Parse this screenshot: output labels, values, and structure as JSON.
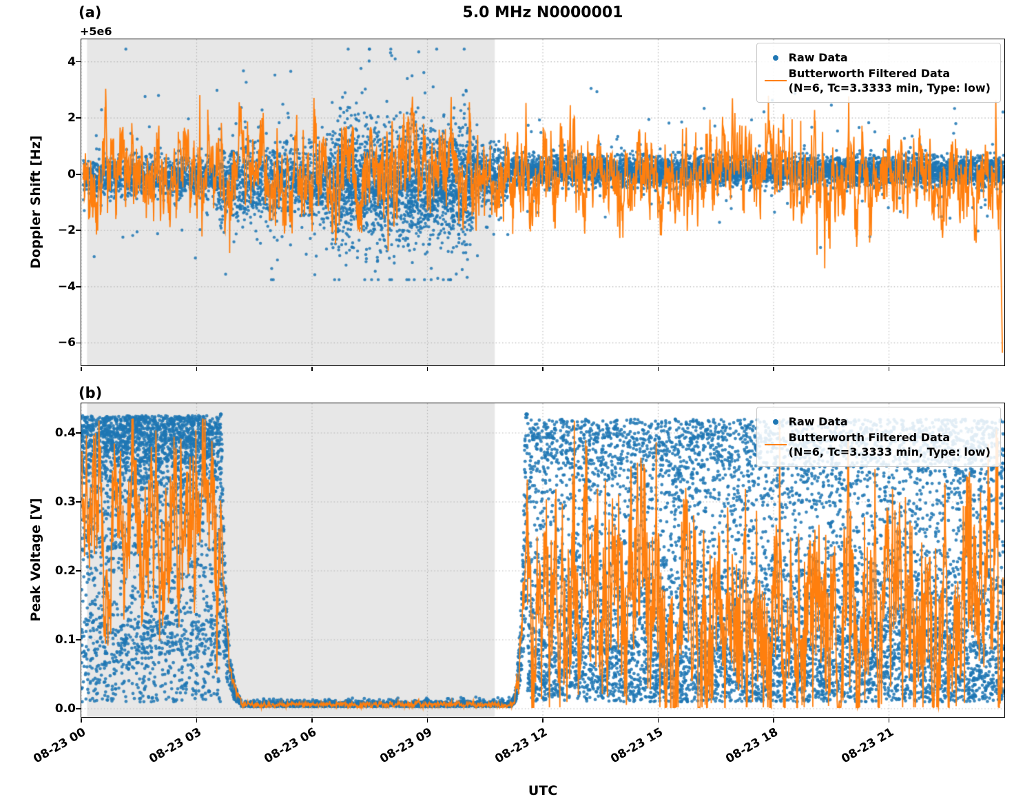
{
  "title": "5.0 MHz N0000001",
  "xlabel": "UTC",
  "colors": {
    "raw": "#1f77b4",
    "filtered": "#ff7f0e",
    "shade": "#e7e7e7",
    "grid": "#b3b3b3",
    "axis": "#000000",
    "background": "#ffffff"
  },
  "legend": {
    "raw_label": "Raw Data",
    "filtered_label": "Butterworth Filtered Data",
    "filtered_sublabel": "(N=6, Tc=3.3333 min, Type: low)"
  },
  "xticks": [
    {
      "hour": 0,
      "label": "08-23 00"
    },
    {
      "hour": 3,
      "label": "08-23 03"
    },
    {
      "hour": 6,
      "label": "08-23 06"
    },
    {
      "hour": 9,
      "label": "08-23 09"
    },
    {
      "hour": 12,
      "label": "08-23 12"
    },
    {
      "hour": 15,
      "label": "08-23 15"
    },
    {
      "hour": 18,
      "label": "08-23 18"
    },
    {
      "hour": 21,
      "label": "08-23 21"
    }
  ],
  "chart_data": [
    {
      "id": "a",
      "type": "scatter+line",
      "panel_label": "(a)",
      "title": "5.0 MHz N0000001",
      "ylabel": "Doppler Shift [Hz]",
      "y_offset_label": "+5e6",
      "ylim": [
        -6.8,
        4.8
      ],
      "yticks": [
        {
          "value": 4,
          "label": "4"
        },
        {
          "value": 2,
          "label": "2"
        },
        {
          "value": 0,
          "label": "0"
        },
        {
          "value": -2,
          "label": "−2"
        },
        {
          "value": -4,
          "label": "−4"
        },
        {
          "value": -6,
          "label": "−6"
        }
      ],
      "x_range_hours": [
        0,
        24
      ],
      "shade_hours": [
        0.15,
        10.75
      ],
      "grid": true,
      "legend_position": "upper right",
      "seed": 1234,
      "raw": {
        "n": 9000,
        "clip": [
          -3.75,
          4.45
        ],
        "segments": [
          {
            "t0": 0.05,
            "t1": 3.5,
            "c": -0.12,
            "s": 0.34,
            "op": 0.035,
            "os": 2.0,
            "dens": 1.0
          },
          {
            "t0": 3.5,
            "t1": 6.5,
            "c": -0.3,
            "s": 0.65,
            "op": 0.05,
            "os": 1.6,
            "dens": 1.15
          },
          {
            "t0": 6.5,
            "t1": 10.2,
            "c": -0.35,
            "s": 1.0,
            "op": 0.05,
            "os": 1.3,
            "dens": 1.8
          },
          {
            "t0": 10.2,
            "t1": 11.1,
            "c": -0.05,
            "s": 0.55,
            "op": 0.04,
            "os": 1.4,
            "dens": 1.2
          },
          {
            "t0": 11.1,
            "t1": 23.98,
            "c": 0.12,
            "s": 0.26,
            "op": 0.02,
            "os": 2.2,
            "dens": 1.25
          }
        ],
        "extra_points": [
          {
            "t": 8.04,
            "v": 4.32
          },
          {
            "t": 8.07,
            "v": 4.22
          },
          {
            "t": 8.6,
            "v": 3.5
          },
          {
            "t": 7.3,
            "v": 2.9
          },
          {
            "t": 9.1,
            "v": -3.35
          },
          {
            "t": 7.7,
            "v": -3.1
          },
          {
            "t": 9.75,
            "v": -3.55
          },
          {
            "t": 5.1,
            "v": -3.05
          },
          {
            "t": 10.3,
            "v": -2.9
          }
        ]
      },
      "filtered": {
        "t0": 0.05,
        "t1": 23.93,
        "dt": 0.008,
        "ar_fast": 0.55,
        "ar_slow": 0.9,
        "scale_fast": 0.5,
        "scale_slow": 0.45,
        "amp_segments": [
          {
            "t0": 0,
            "t1": 11,
            "amp": 1.15
          },
          {
            "t0": 11,
            "t1": 24,
            "amp": 1.05
          }
        ],
        "spike_p": 0.012,
        "spike_scale": 1.9,
        "clip": [
          -3.35,
          3.3
        ],
        "end_spike": [
          [
            23.9,
            -2.0
          ],
          [
            23.95,
            -6.35
          ]
        ]
      }
    },
    {
      "id": "b",
      "type": "scatter+line",
      "panel_label": "(b)",
      "ylabel": "Peak Voltage [V]",
      "y_offset_label": "",
      "ylim": [
        -0.012,
        0.443
      ],
      "yticks": [
        {
          "value": 0.0,
          "label": "0.0"
        },
        {
          "value": 0.1,
          "label": "0.1"
        },
        {
          "value": 0.2,
          "label": "0.2"
        },
        {
          "value": 0.3,
          "label": "0.3"
        },
        {
          "value": 0.4,
          "label": "0.4"
        }
      ],
      "x_range_hours": [
        0,
        24
      ],
      "shade_hours": [
        0.15,
        10.75
      ],
      "grid": true,
      "legend_position": "upper right",
      "seed": 98765,
      "raw": {
        "n": 9000,
        "clip": [
          0.0,
          0.427
        ],
        "segments": [
          {
            "t0": 0.0,
            "t1": 3.62,
            "mode": "active",
            "dens": 2.3
          },
          {
            "t0": 3.62,
            "t1": 4.15,
            "mode": "fall",
            "dens": 1.4
          },
          {
            "t0": 4.15,
            "t1": 11.2,
            "mode": "quiet",
            "dens": 0.55
          },
          {
            "t0": 11.2,
            "t1": 11.6,
            "mode": "rise",
            "dens": 1.4
          },
          {
            "t0": 11.6,
            "t1": 23.99,
            "mode": "active2",
            "dens": 1.75
          }
        ]
      },
      "filtered": {
        "t0": 0.02,
        "t1": 23.97,
        "dt": 0.008,
        "ar_fast": 0.6,
        "ar_slow": 0.9,
        "clip": [
          0.002,
          0.42
        ]
      }
    }
  ]
}
